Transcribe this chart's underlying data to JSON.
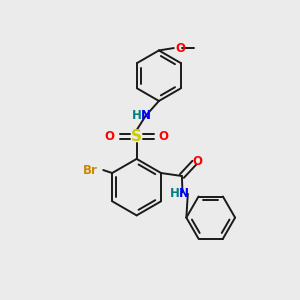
{
  "background_color": "#ebebeb",
  "bond_color": "#1a1a1a",
  "atom_colors": {
    "N": "#0000ff",
    "H": "#008080",
    "O": "#ff0000",
    "S": "#cccc00",
    "Br": "#cc8800"
  },
  "figsize": [
    3.0,
    3.0
  ],
  "dpi": 100
}
